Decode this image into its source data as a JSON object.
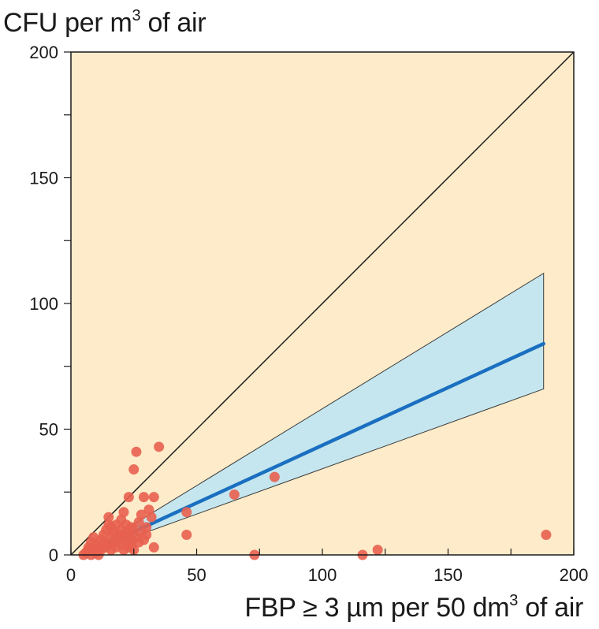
{
  "chart_data": {
    "type": "scatter",
    "title": "",
    "ylabel": {
      "prefix": "CFU per m",
      "sup": "3",
      "suffix": " of air"
    },
    "xlabel": {
      "prefix": "FBP ≥ 3 µm per 50 dm",
      "sup": "3",
      "suffix": " of air"
    },
    "xlim": [
      0,
      200
    ],
    "ylim": [
      0,
      200
    ],
    "x_ticks": [
      0,
      50,
      100,
      150,
      200
    ],
    "y_ticks": [
      0,
      50,
      100,
      150,
      200
    ],
    "grid": false,
    "background_color": "#fdebc9",
    "point_color": "#e8604f",
    "fit_color": "#1a6fc0",
    "band_color": "#c5e6ee",
    "identity_line": {
      "from": [
        0,
        0
      ],
      "to": [
        200,
        200
      ]
    },
    "fit_line": {
      "from": [
        5,
        0
      ],
      "to": [
        188,
        84
      ]
    },
    "confidence_band": {
      "upper": [
        [
          5,
          0
        ],
        [
          188,
          112
        ]
      ],
      "lower": [
        [
          5,
          0
        ],
        [
          188,
          66
        ]
      ]
    },
    "points": [
      [
        5,
        0
      ],
      [
        6,
        1
      ],
      [
        7,
        2
      ],
      [
        7,
        3
      ],
      [
        8,
        0
      ],
      [
        8,
        5
      ],
      [
        9,
        2
      ],
      [
        9,
        7
      ],
      [
        10,
        1
      ],
      [
        10,
        4
      ],
      [
        11,
        3
      ],
      [
        11,
        0
      ],
      [
        12,
        6
      ],
      [
        12,
        2
      ],
      [
        13,
        5
      ],
      [
        13,
        8
      ],
      [
        14,
        3
      ],
      [
        14,
        10
      ],
      [
        15,
        4
      ],
      [
        15,
        15
      ],
      [
        15,
        12
      ],
      [
        16,
        2
      ],
      [
        16,
        7
      ],
      [
        16,
        11
      ],
      [
        17,
        5
      ],
      [
        17,
        9
      ],
      [
        18,
        3
      ],
      [
        18,
        12
      ],
      [
        19,
        6
      ],
      [
        19,
        8
      ],
      [
        20,
        4
      ],
      [
        20,
        10
      ],
      [
        20,
        14
      ],
      [
        21,
        2
      ],
      [
        21,
        17
      ],
      [
        21,
        7
      ],
      [
        22,
        5
      ],
      [
        22,
        12
      ],
      [
        22,
        9
      ],
      [
        23,
        3
      ],
      [
        23,
        23
      ],
      [
        23,
        8
      ],
      [
        24,
        6
      ],
      [
        24,
        11
      ],
      [
        24,
        4
      ],
      [
        25,
        34
      ],
      [
        25,
        2
      ],
      [
        25,
        10
      ],
      [
        26,
        41
      ],
      [
        26,
        7
      ],
      [
        27,
        13
      ],
      [
        27,
        5
      ],
      [
        28,
        9
      ],
      [
        28,
        16
      ],
      [
        29,
        23
      ],
      [
        29,
        6
      ],
      [
        30,
        11
      ],
      [
        30,
        8
      ],
      [
        31,
        18
      ],
      [
        32,
        15
      ],
      [
        33,
        23
      ],
      [
        33,
        3
      ],
      [
        35,
        43
      ],
      [
        46,
        17
      ],
      [
        46,
        8
      ],
      [
        65,
        24
      ],
      [
        73,
        0
      ],
      [
        81,
        31
      ],
      [
        116,
        0
      ],
      [
        122,
        2
      ],
      [
        189,
        8
      ]
    ]
  }
}
